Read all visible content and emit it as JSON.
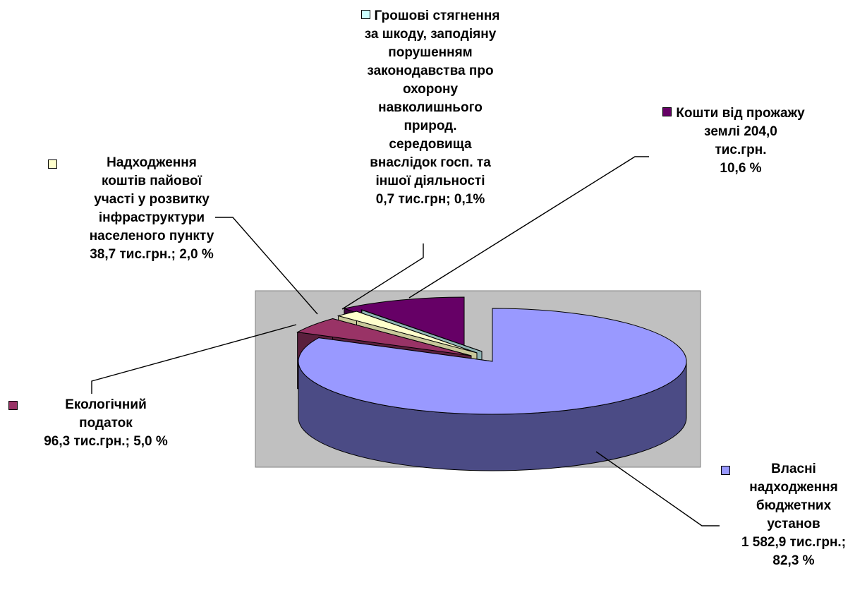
{
  "chart_data": {
    "type": "pie",
    "title": "",
    "units": "тис.грн.",
    "colors": {
      "plot_area": "#c0c0c0",
      "slice_0_top": "#9999ff",
      "slice_0_side": "#4b4b85",
      "slice_1_top": "#993366",
      "slice_1_side": "#5a1f3d",
      "slice_2_top": "#ffffcc",
      "slice_2_side": "#c8c89a",
      "slice_3_top": "#ccffff",
      "slice_3_side": "#8fb3b3",
      "slice_4_top": "#660066",
      "slice_4_side": "#3d003d"
    },
    "slices": [
      {
        "key": "vlasni",
        "value": 1582.9,
        "percent": 82.3,
        "color": "#9999ff",
        "label_lines": [
          "Власні",
          "надходження",
          "бюджетних",
          "установ",
          "1 582,9 тис.грн.;",
          "82,3 %"
        ]
      },
      {
        "key": "ekologichnyi",
        "value": 96.3,
        "percent": 5.0,
        "color": "#993366",
        "label_lines": [
          "Екологічний",
          "податок",
          "96,3 тис.грн.; 5,0 %"
        ]
      },
      {
        "key": "payova",
        "value": 38.7,
        "percent": 2.0,
        "color": "#ffffcc",
        "label_lines": [
          "Надходження",
          "коштів пайової",
          "участі у розвитку",
          "інфраструктури",
          "населеного пункту",
          "38,7 тис.грн.;  2,0 %"
        ]
      },
      {
        "key": "styagnennya",
        "value": 0.7,
        "percent": 0.1,
        "color": "#ccffff",
        "label_lines": [
          "Грошові стягнення",
          "за шкоду, заподіяну",
          "порушенням",
          "законодавства про",
          "охорону",
          "навколишнього",
          "природ.",
          "середовища",
          "внаслідок госп. та",
          "іншої діяльності",
          "0,7 тис.грн;  0,1%"
        ]
      },
      {
        "key": "zemlya",
        "value": 204.0,
        "percent": 10.6,
        "color": "#660066",
        "label_lines": [
          "Кошти від прожажу",
          "землі 204,0",
          "тис.грн.",
          "10,6 %"
        ]
      }
    ]
  }
}
